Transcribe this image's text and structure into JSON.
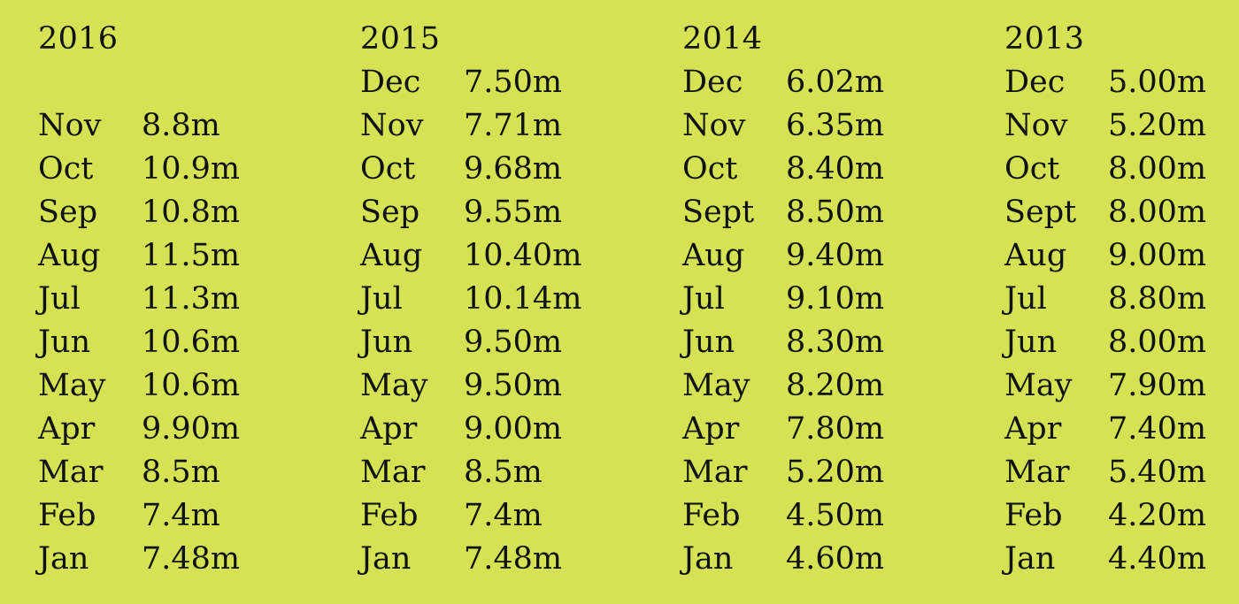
{
  "years": [
    {
      "year": "2016",
      "rows": [
        null,
        {
          "month": "Nov",
          "value": " 8.8m"
        },
        {
          "month": "Oct",
          "value": "10.9m"
        },
        {
          "month": "Sep",
          "value": "10.8m"
        },
        {
          "month": "Aug",
          "value": "11.5m"
        },
        {
          "month": "Jul",
          "value": "11.3m"
        },
        {
          "month": "Jun",
          "value": "10.6m"
        },
        {
          "month": "May",
          "value": "10.6m"
        },
        {
          "month": "Apr",
          "value": "9.90m"
        },
        {
          "month": "Mar",
          "value": "8.5m"
        },
        {
          "month": "Feb",
          "value": "7.4m"
        },
        {
          "month": "Jan",
          "value": "7.48m"
        }
      ]
    },
    {
      "year": "2015",
      "rows": [
        {
          "month": "Dec",
          "value": "7.50m"
        },
        {
          "month": "Nov",
          "value": "7.71m"
        },
        {
          "month": "Oct",
          "value": "9.68m"
        },
        {
          "month": "Sep",
          "value": "9.55m"
        },
        {
          "month": "Aug",
          "value": "10.40m"
        },
        {
          "month": "Jul",
          "value": "10.14m"
        },
        {
          "month": "Jun",
          "value": "9.50m"
        },
        {
          "month": "May",
          "value": "9.50m"
        },
        {
          "month": "Apr",
          "value": "9.00m"
        },
        {
          "month": "Mar",
          "value": "8.5m"
        },
        {
          "month": "Feb",
          "value": "7.4m"
        },
        {
          "month": "Jan",
          "value": "7.48m"
        }
      ]
    },
    {
      "year": "2014",
      "rows": [
        {
          "month": "Dec",
          "value": "6.02m"
        },
        {
          "month": "Nov",
          "value": "6.35m"
        },
        {
          "month": "Oct",
          "value": "8.40m"
        },
        {
          "month": "Sept",
          "value": "8.50m"
        },
        {
          "month": "Aug",
          "value": "9.40m"
        },
        {
          "month": "Jul",
          "value": "9.10m"
        },
        {
          "month": "Jun",
          "value": "8.30m"
        },
        {
          "month": "May",
          "value": "8.20m"
        },
        {
          "month": "Apr",
          "value": "7.80m"
        },
        {
          "month": "Mar",
          "value": "5.20m"
        },
        {
          "month": "Feb",
          "value": "4.50m"
        },
        {
          "month": "Jan",
          "value": "4.60m"
        }
      ]
    },
    {
      "year": "2013",
      "rows": [
        {
          "month": "Dec",
          "value": "5.00m"
        },
        {
          "month": "Nov",
          "value": "5.20m"
        },
        {
          "month": "Oct",
          "value": "8.00m"
        },
        {
          "month": "Sept",
          "value": "8.00m"
        },
        {
          "month": "Aug",
          "value": "9.00m"
        },
        {
          "month": "Jul",
          "value": "8.80m"
        },
        {
          "month": "Jun",
          "value": "8.00m"
        },
        {
          "month": "May",
          "value": "7.90m"
        },
        {
          "month": "Apr",
          "value": "7.40m"
        },
        {
          "month": "Mar",
          "value": "5.40m"
        },
        {
          "month": "Feb",
          "value": "4.20m"
        },
        {
          "month": "Jan",
          "value": "4.40m"
        }
      ]
    }
  ]
}
